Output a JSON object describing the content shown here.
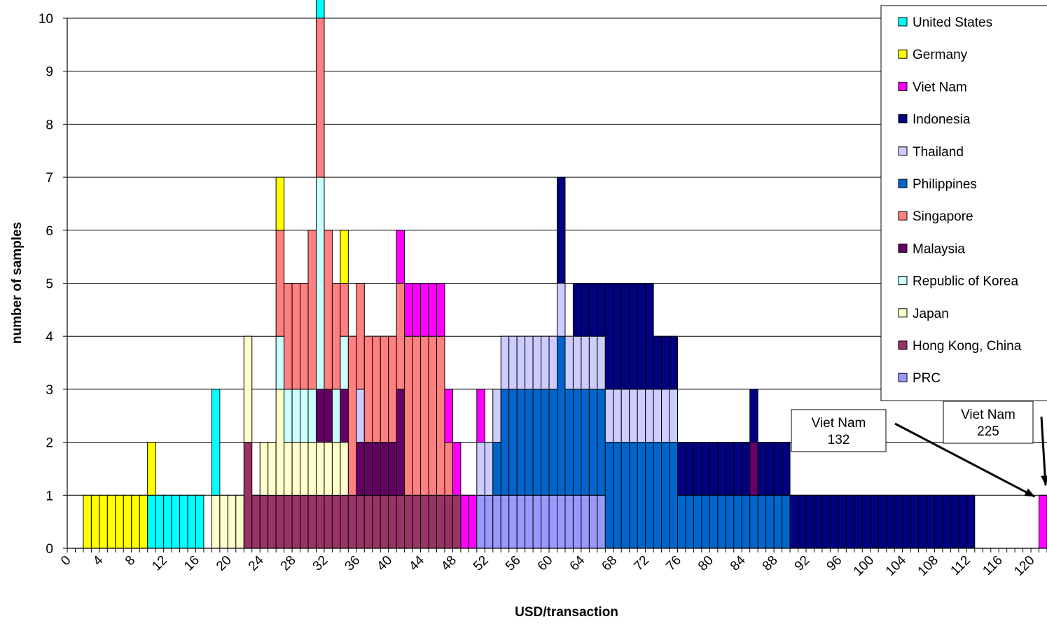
{
  "chart_data": {
    "type": "bar",
    "stacked": true,
    "title": "",
    "xlabel": "USD/transaction",
    "ylabel": "number of samples",
    "xlim": [
      0,
      122
    ],
    "ylim": [
      0,
      10
    ],
    "x_tick_labels": [
      "0",
      "4",
      "8",
      "12",
      "16",
      "20",
      "24",
      "28",
      "32",
      "36",
      "40",
      "44",
      "48",
      "52",
      "56",
      "60",
      "64",
      "68",
      "72",
      "76",
      "80",
      "84",
      "88",
      "92",
      "96",
      "100",
      "104",
      "108",
      "112",
      "116",
      "120"
    ],
    "y_tick_labels": [
      "0",
      "1",
      "2",
      "3",
      "4",
      "5",
      "6",
      "7",
      "8",
      "9",
      "10"
    ],
    "grid": "horizontal",
    "legend_position": "top-right",
    "series": [
      {
        "name": "United States",
        "color": "#00FFFF",
        "points": [
          [
            10,
            1
          ],
          [
            11,
            1
          ],
          [
            12,
            1
          ],
          [
            13,
            1
          ],
          [
            14,
            1
          ],
          [
            15,
            1
          ],
          [
            16,
            1
          ],
          [
            18,
            2
          ],
          [
            31,
            1
          ],
          [
            35,
            0
          ]
        ]
      },
      {
        "name": "Germany",
        "color": "#FFFF00",
        "points": [
          [
            2,
            1
          ],
          [
            3,
            1
          ],
          [
            4,
            1
          ],
          [
            5,
            1
          ],
          [
            6,
            1
          ],
          [
            7,
            1
          ],
          [
            8,
            1
          ],
          [
            9,
            1
          ],
          [
            10,
            1
          ],
          [
            26,
            1
          ],
          [
            34,
            1
          ]
        ]
      },
      {
        "name": "Viet Nam",
        "color": "#FF00FF",
        "points": [
          [
            41,
            1
          ],
          [
            42,
            1
          ],
          [
            43,
            1
          ],
          [
            44,
            1
          ],
          [
            45,
            1
          ],
          [
            46,
            1
          ],
          [
            47,
            1
          ],
          [
            48,
            1
          ],
          [
            49,
            1
          ],
          [
            50,
            1
          ],
          [
            51,
            1
          ],
          [
            121,
            1
          ]
        ]
      },
      {
        "name": "Indonesia",
        "color": "#000080",
        "points": [
          [
            61,
            2
          ],
          [
            63,
            1
          ],
          [
            64,
            1
          ],
          [
            65,
            1
          ],
          [
            66,
            1
          ],
          [
            67,
            2
          ],
          [
            68,
            2
          ],
          [
            69,
            2
          ],
          [
            70,
            2
          ],
          [
            71,
            2
          ],
          [
            72,
            2
          ],
          [
            73,
            1
          ],
          [
            74,
            1
          ],
          [
            75,
            1
          ],
          [
            76,
            1
          ],
          [
            77,
            1
          ],
          [
            78,
            1
          ],
          [
            79,
            1
          ],
          [
            80,
            1
          ],
          [
            81,
            1
          ],
          [
            82,
            1
          ],
          [
            83,
            1
          ],
          [
            84,
            1
          ],
          [
            85,
            1
          ],
          [
            86,
            1
          ],
          [
            87,
            1
          ],
          [
            88,
            1
          ],
          [
            89,
            1
          ],
          [
            90,
            1
          ],
          [
            91,
            1
          ],
          [
            92,
            1
          ],
          [
            93,
            1
          ],
          [
            94,
            1
          ],
          [
            95,
            1
          ],
          [
            96,
            1
          ],
          [
            97,
            1
          ],
          [
            98,
            1
          ],
          [
            99,
            1
          ],
          [
            100,
            1
          ],
          [
            101,
            1
          ],
          [
            102,
            1
          ],
          [
            103,
            1
          ],
          [
            104,
            1
          ],
          [
            105,
            1
          ],
          [
            106,
            1
          ],
          [
            107,
            1
          ],
          [
            108,
            1
          ],
          [
            109,
            1
          ],
          [
            110,
            1
          ],
          [
            111,
            1
          ],
          [
            112,
            1
          ]
        ]
      },
      {
        "name": "Thailand",
        "color": "#CCCCFF",
        "points": [
          [
            36,
            1
          ],
          [
            51,
            1
          ],
          [
            52,
            1
          ],
          [
            53,
            1
          ],
          [
            54,
            1
          ],
          [
            55,
            1
          ],
          [
            56,
            1
          ],
          [
            57,
            1
          ],
          [
            58,
            1
          ],
          [
            59,
            1
          ],
          [
            60,
            1
          ],
          [
            61,
            1
          ],
          [
            62,
            1
          ],
          [
            63,
            1
          ],
          [
            64,
            1
          ],
          [
            65,
            1
          ],
          [
            66,
            1
          ],
          [
            67,
            1
          ],
          [
            68,
            1
          ],
          [
            69,
            1
          ],
          [
            70,
            1
          ],
          [
            71,
            1
          ],
          [
            72,
            1
          ],
          [
            73,
            1
          ],
          [
            74,
            1
          ],
          [
            75,
            1
          ]
        ]
      },
      {
        "name": "Philippines",
        "color": "#0066CC",
        "points": [
          [
            53,
            1
          ],
          [
            54,
            2
          ],
          [
            55,
            2
          ],
          [
            56,
            2
          ],
          [
            57,
            2
          ],
          [
            58,
            2
          ],
          [
            59,
            2
          ],
          [
            60,
            2
          ],
          [
            61,
            3
          ],
          [
            62,
            2
          ],
          [
            63,
            2
          ],
          [
            64,
            2
          ],
          [
            65,
            2
          ],
          [
            66,
            2
          ],
          [
            67,
            2
          ],
          [
            68,
            2
          ],
          [
            69,
            2
          ],
          [
            70,
            2
          ],
          [
            71,
            2
          ],
          [
            72,
            2
          ],
          [
            73,
            2
          ],
          [
            74,
            2
          ],
          [
            75,
            2
          ],
          [
            76,
            1
          ],
          [
            77,
            1
          ],
          [
            78,
            1
          ],
          [
            79,
            1
          ],
          [
            80,
            1
          ],
          [
            81,
            1
          ],
          [
            82,
            1
          ],
          [
            83,
            1
          ],
          [
            84,
            1
          ],
          [
            85,
            1
          ],
          [
            86,
            1
          ],
          [
            87,
            1
          ],
          [
            88,
            1
          ],
          [
            89,
            1
          ]
        ]
      },
      {
        "name": "Singapore",
        "color": "#FF8080",
        "points": [
          [
            26,
            2
          ],
          [
            27,
            2
          ],
          [
            28,
            2
          ],
          [
            29,
            2
          ],
          [
            30,
            3
          ],
          [
            31,
            3
          ],
          [
            32,
            3
          ],
          [
            33,
            2
          ],
          [
            34,
            1
          ],
          [
            35,
            3
          ],
          [
            36,
            2
          ],
          [
            37,
            2
          ],
          [
            38,
            2
          ],
          [
            39,
            2
          ],
          [
            40,
            2
          ],
          [
            41,
            2
          ],
          [
            42,
            3
          ],
          [
            43,
            3
          ],
          [
            44,
            3
          ],
          [
            45,
            3
          ],
          [
            46,
            3
          ],
          [
            47,
            1
          ]
        ]
      },
      {
        "name": "Malaysia",
        "color": "#660066",
        "points": [
          [
            31,
            1
          ],
          [
            32,
            1
          ],
          [
            34,
            1
          ],
          [
            36,
            1
          ],
          [
            37,
            1
          ],
          [
            38,
            1
          ],
          [
            39,
            1
          ],
          [
            40,
            1
          ],
          [
            41,
            2
          ],
          [
            85,
            1
          ]
        ]
      },
      {
        "name": "Republic of Korea",
        "color": "#CCFFFF",
        "points": [
          [
            26,
            1
          ],
          [
            27,
            1
          ],
          [
            28,
            1
          ],
          [
            29,
            1
          ],
          [
            30,
            1
          ],
          [
            31,
            4
          ],
          [
            33,
            1
          ],
          [
            34,
            1
          ]
        ]
      },
      {
        "name": "Japan",
        "color": "#FFFFCC",
        "points": [
          [
            18,
            1
          ],
          [
            19,
            1
          ],
          [
            20,
            1
          ],
          [
            21,
            1
          ],
          [
            22,
            2
          ],
          [
            24,
            1
          ],
          [
            25,
            1
          ],
          [
            26,
            2
          ],
          [
            27,
            1
          ],
          [
            28,
            1
          ],
          [
            29,
            1
          ],
          [
            30,
            1
          ],
          [
            31,
            1
          ],
          [
            32,
            1
          ],
          [
            33,
            1
          ],
          [
            34,
            1
          ]
        ]
      },
      {
        "name": "Hong Kong, China",
        "color": "#993366",
        "points": [
          [
            22,
            2
          ],
          [
            23,
            1
          ],
          [
            24,
            1
          ],
          [
            25,
            1
          ],
          [
            26,
            1
          ],
          [
            27,
            1
          ],
          [
            28,
            1
          ],
          [
            29,
            1
          ],
          [
            30,
            1
          ],
          [
            31,
            1
          ],
          [
            32,
            1
          ],
          [
            33,
            1
          ],
          [
            34,
            1
          ],
          [
            35,
            1
          ],
          [
            36,
            1
          ],
          [
            37,
            1
          ],
          [
            38,
            1
          ],
          [
            39,
            1
          ],
          [
            40,
            1
          ],
          [
            41,
            1
          ],
          [
            42,
            1
          ],
          [
            43,
            1
          ],
          [
            44,
            1
          ],
          [
            45,
            1
          ],
          [
            46,
            1
          ],
          [
            47,
            1
          ],
          [
            48,
            1
          ]
        ]
      },
      {
        "name": "PRC",
        "color": "#9999FF",
        "points": [
          [
            51,
            1
          ],
          [
            52,
            1
          ],
          [
            53,
            1
          ],
          [
            54,
            1
          ],
          [
            55,
            1
          ],
          [
            56,
            1
          ],
          [
            57,
            1
          ],
          [
            58,
            1
          ],
          [
            59,
            1
          ],
          [
            60,
            1
          ],
          [
            61,
            1
          ],
          [
            62,
            1
          ],
          [
            63,
            1
          ],
          [
            64,
            1
          ],
          [
            65,
            1
          ],
          [
            66,
            1
          ]
        ]
      }
    ],
    "stack_order": [
      "Hong Kong, China",
      "PRC",
      "Japan",
      "Philippines",
      "Malaysia",
      "Republic of Korea",
      "Thailand",
      "Singapore",
      "Indonesia",
      "Viet Nam",
      "United States",
      "Germany"
    ],
    "annotations": [
      {
        "text": [
          "Viet Nam",
          "132"
        ],
        "points_to": "bar near x=121"
      },
      {
        "text": [
          "Viet Nam",
          "225"
        ],
        "points_to": "bar past right edge"
      }
    ]
  }
}
